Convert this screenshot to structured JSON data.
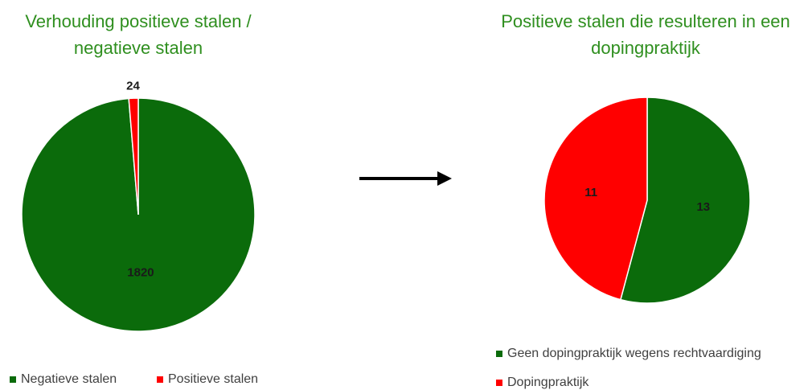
{
  "chart_data": [
    {
      "type": "pie",
      "title": "Verhouding positieve stalen / negatieve stalen",
      "categories": [
        "Negatieve stalen",
        "Positieve stalen"
      ],
      "values": [
        1820,
        24
      ],
      "colors": [
        "#0b6b0b",
        "#ff0000"
      ],
      "legend": "bottom"
    },
    {
      "type": "pie",
      "title": "Positieve stalen die resulteren in een dopingpraktijk",
      "categories": [
        "Geen dopingpraktijk wegens rechtvaardiging",
        "Dopingpraktijk"
      ],
      "values": [
        13,
        11
      ],
      "colors": [
        "#0b6b0b",
        "#ff0000"
      ],
      "legend": "bottom"
    }
  ]
}
